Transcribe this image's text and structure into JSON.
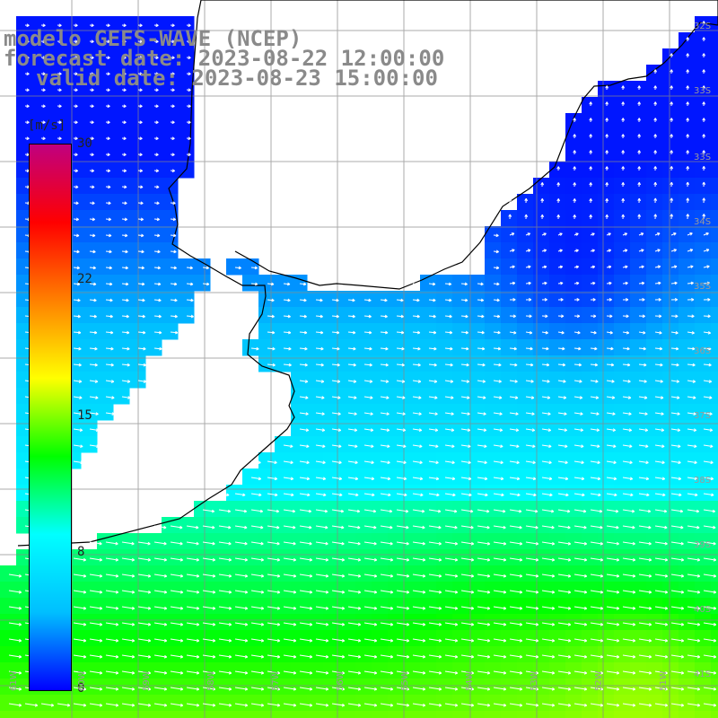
{
  "title": {
    "line1": "modelo GEFS-WAVE (NCEP)",
    "line2": "forecast date: 2023-08-22 12:00:00",
    "line3": "valid date: 2023-08-23 15:00:00"
  },
  "colorbar": {
    "unit": "[m/s]",
    "min": 0,
    "max": 30,
    "ticks": [
      "30",
      "22",
      "15",
      "8",
      "0"
    ],
    "tick_values": [
      30,
      22,
      15,
      8,
      0
    ],
    "stops": [
      "#0000ff",
      "#00bfff",
      "#00ffff",
      "#00ff00",
      "#ffff00",
      "#ff8000",
      "#ff0000",
      "#c00080"
    ]
  },
  "map": {
    "field": "wind speed",
    "land_color": "#ffffff",
    "coastline_color": "#000000",
    "grid_color": "#888888",
    "vector_color": "#ffffff",
    "latitude_labels": [
      "32S",
      "33S",
      "34S",
      "35S",
      "36S",
      "37S",
      "38S",
      "39S",
      "40S",
      "41S"
    ],
    "longitude_labels": [
      "61W",
      "60W",
      "59W",
      "58W",
      "57W",
      "56W",
      "55W",
      "54W",
      "53W",
      "52W",
      "51W"
    ]
  }
}
